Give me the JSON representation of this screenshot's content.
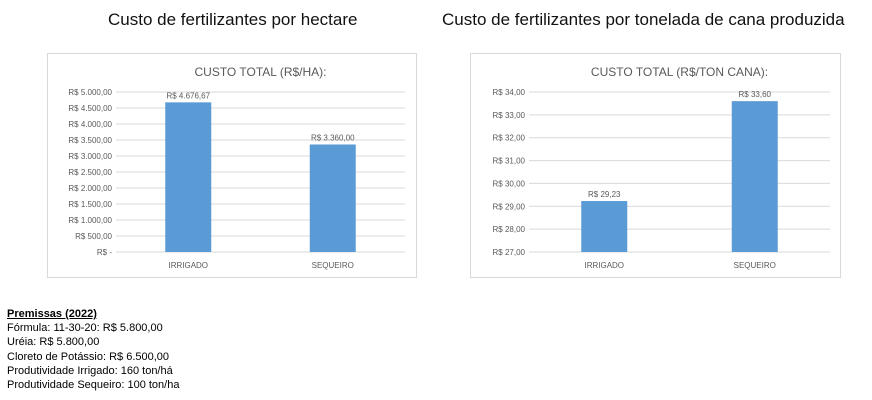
{
  "headings": {
    "left": "Custo de fertilizantes por hectare",
    "right": "Custo de fertilizantes por tonelada de cana produzida"
  },
  "colors": {
    "bar": "#5b9bd5",
    "grid": "#d9d9d9",
    "text": "#595959"
  },
  "chart_data": [
    {
      "type": "bar",
      "title": "CUSTO TOTAL (R$/HA):",
      "xlabel": "",
      "ylabel": "",
      "categories": [
        "IRRIGADO",
        "SEQUEIRO"
      ],
      "values": [
        4676.67,
        3360.0
      ],
      "data_labels": [
        "R$ 4.676,67",
        "R$ 3.360,00"
      ],
      "ylim": [
        0,
        5000
      ],
      "yticks": [
        0,
        500,
        1000,
        1500,
        2000,
        2500,
        3000,
        3500,
        4000,
        4500,
        5000
      ],
      "ytick_labels": [
        "R$ -",
        "R$ 500,00",
        "R$ 1.000,00",
        "R$ 1.500,00",
        "R$ 2.000,00",
        "R$ 2.500,00",
        "R$ 3.000,00",
        "R$ 3.500,00",
        "R$ 4.000,00",
        "R$ 4.500,00",
        "R$ 5.000,00"
      ],
      "grid": true,
      "legend": "none"
    },
    {
      "type": "bar",
      "title": "CUSTO TOTAL (R$/TON CANA):",
      "xlabel": "",
      "ylabel": "",
      "categories": [
        "IRRIGADO",
        "SEQUEIRO"
      ],
      "values": [
        29.23,
        33.6
      ],
      "data_labels": [
        "R$ 29,23",
        "R$ 33,60"
      ],
      "ylim": [
        27,
        34
      ],
      "yticks": [
        27,
        28,
        29,
        30,
        31,
        32,
        33,
        34
      ],
      "ytick_labels": [
        "R$ 27,00",
        "R$ 28,00",
        "R$ 29,00",
        "R$ 30,00",
        "R$ 31,00",
        "R$ 32,00",
        "R$ 33,00",
        "R$ 34,00"
      ],
      "grid": true,
      "legend": "none"
    }
  ],
  "premissas": {
    "title": "Premissas (2022)",
    "lines": [
      "Fórmula: 11-30-20: R$ 5.800,00",
      "Uréia: R$ 5.800,00",
      "Cloreto de Potássio: R$ 6.500,00",
      "Produtividade Irrigado: 160 ton/há",
      "Produtividade Sequeiro: 100 ton/ha"
    ]
  }
}
